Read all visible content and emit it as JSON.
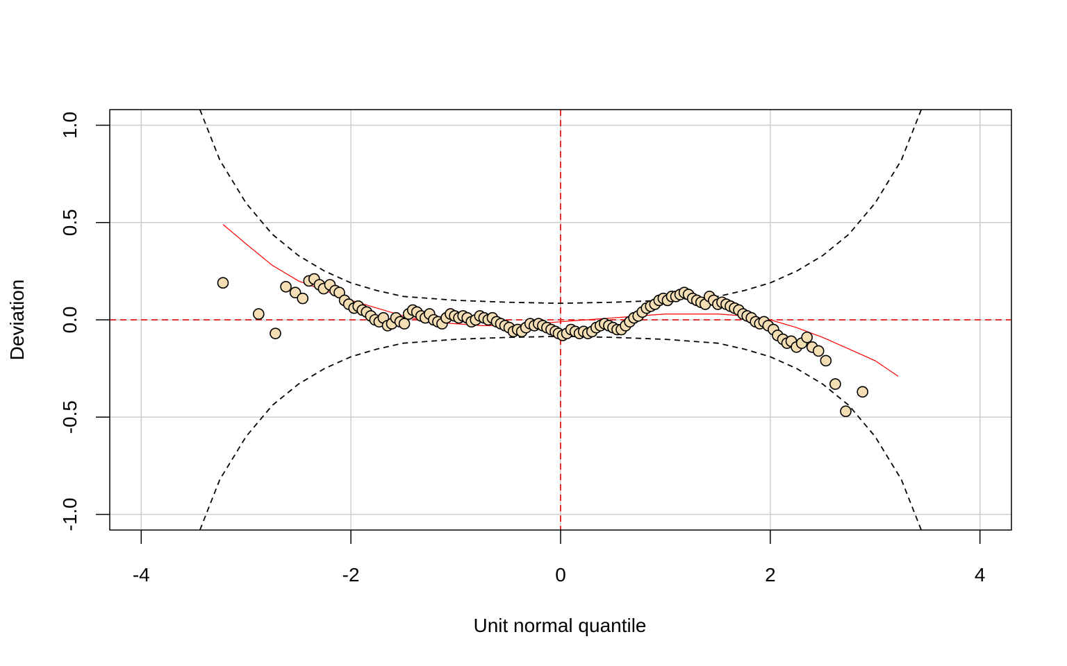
{
  "chart_data": {
    "type": "scatter",
    "title": "",
    "xlabel": "Unit normal quantile",
    "ylabel": "Deviation",
    "xlim": [
      -4.3,
      4.3
    ],
    "ylim": [
      -1.08,
      1.08
    ],
    "x_ticks": [
      -4,
      -2,
      0,
      2,
      4
    ],
    "x_tick_labels": [
      "-4",
      "-2",
      "0",
      "2",
      "4"
    ],
    "y_ticks": [
      -1.0,
      -0.5,
      0.0,
      0.5,
      1.0
    ],
    "y_tick_labels": [
      "-1.0",
      "-0.5",
      "0.0",
      "0.5",
      "1.0"
    ],
    "grid": true,
    "reference_lines": {
      "x": 0,
      "y": 0,
      "color": "#e31a1c",
      "style": "dashed"
    },
    "point_fill": "#f5deb3",
    "point_stroke": "#000000",
    "fit_color": "#ff0000",
    "band_color": "#000000",
    "points": [
      [
        -3.22,
        0.19
      ],
      [
        -2.88,
        0.03
      ],
      [
        -2.72,
        -0.07
      ],
      [
        -2.62,
        0.17
      ],
      [
        -2.53,
        0.14
      ],
      [
        -2.46,
        0.11
      ],
      [
        -2.4,
        0.2
      ],
      [
        -2.35,
        0.21
      ],
      [
        -2.3,
        0.18
      ],
      [
        -2.26,
        0.16
      ],
      [
        -2.2,
        0.18
      ],
      [
        -2.15,
        0.15
      ],
      [
        -2.11,
        0.14
      ],
      [
        -2.06,
        0.1
      ],
      [
        -2.02,
        0.08
      ],
      [
        -1.97,
        0.06
      ],
      [
        -1.93,
        0.07
      ],
      [
        -1.89,
        0.05
      ],
      [
        -1.85,
        0.04
      ],
      [
        -1.81,
        0.02
      ],
      [
        -1.77,
        0.0
      ],
      [
        -1.73,
        -0.01
      ],
      [
        -1.69,
        0.01
      ],
      [
        -1.65,
        -0.03
      ],
      [
        -1.61,
        -0.02
      ],
      [
        -1.57,
        0.01
      ],
      [
        -1.53,
        -0.01
      ],
      [
        -1.49,
        -0.02
      ],
      [
        -1.45,
        0.03
      ],
      [
        -1.41,
        0.05
      ],
      [
        -1.37,
        0.04
      ],
      [
        -1.33,
        0.02
      ],
      [
        -1.29,
        0.01
      ],
      [
        -1.25,
        0.03
      ],
      [
        -1.21,
        0.0
      ],
      [
        -1.17,
        -0.01
      ],
      [
        -1.13,
        -0.02
      ],
      [
        -1.09,
        0.01
      ],
      [
        -1.05,
        0.03
      ],
      [
        -1.01,
        0.02
      ],
      [
        -0.97,
        0.01
      ],
      [
        -0.93,
        0.02
      ],
      [
        -0.89,
        0.01
      ],
      [
        -0.85,
        -0.01
      ],
      [
        -0.81,
        0.0
      ],
      [
        -0.77,
        0.02
      ],
      [
        -0.73,
        0.01
      ],
      [
        -0.69,
        0.0
      ],
      [
        -0.65,
        0.01
      ],
      [
        -0.61,
        -0.01
      ],
      [
        -0.57,
        -0.02
      ],
      [
        -0.53,
        -0.03
      ],
      [
        -0.49,
        -0.04
      ],
      [
        -0.45,
        -0.06
      ],
      [
        -0.41,
        -0.05
      ],
      [
        -0.37,
        -0.06
      ],
      [
        -0.33,
        -0.04
      ],
      [
        -0.29,
        -0.02
      ],
      [
        -0.25,
        -0.03
      ],
      [
        -0.21,
        -0.02
      ],
      [
        -0.17,
        -0.03
      ],
      [
        -0.13,
        -0.04
      ],
      [
        -0.09,
        -0.05
      ],
      [
        -0.05,
        -0.06
      ],
      [
        -0.02,
        -0.07
      ],
      [
        0.02,
        -0.08
      ],
      [
        0.06,
        -0.07
      ],
      [
        0.1,
        -0.05
      ],
      [
        0.14,
        -0.06
      ],
      [
        0.18,
        -0.07
      ],
      [
        0.22,
        -0.06
      ],
      [
        0.26,
        -0.07
      ],
      [
        0.3,
        -0.06
      ],
      [
        0.34,
        -0.04
      ],
      [
        0.38,
        -0.03
      ],
      [
        0.42,
        -0.02
      ],
      [
        0.46,
        -0.03
      ],
      [
        0.5,
        -0.04
      ],
      [
        0.54,
        -0.05
      ],
      [
        0.58,
        -0.05
      ],
      [
        0.62,
        -0.03
      ],
      [
        0.66,
        -0.01
      ],
      [
        0.7,
        0.01
      ],
      [
        0.74,
        0.02
      ],
      [
        0.78,
        0.04
      ],
      [
        0.82,
        0.06
      ],
      [
        0.86,
        0.07
      ],
      [
        0.9,
        0.08
      ],
      [
        0.94,
        0.1
      ],
      [
        0.98,
        0.11
      ],
      [
        1.02,
        0.1
      ],
      [
        1.06,
        0.12
      ],
      [
        1.1,
        0.12
      ],
      [
        1.14,
        0.13
      ],
      [
        1.18,
        0.14
      ],
      [
        1.22,
        0.13
      ],
      [
        1.26,
        0.11
      ],
      [
        1.3,
        0.1
      ],
      [
        1.34,
        0.09
      ],
      [
        1.38,
        0.08
      ],
      [
        1.42,
        0.12
      ],
      [
        1.46,
        0.1
      ],
      [
        1.5,
        0.08
      ],
      [
        1.54,
        0.09
      ],
      [
        1.58,
        0.08
      ],
      [
        1.62,
        0.07
      ],
      [
        1.66,
        0.06
      ],
      [
        1.7,
        0.05
      ],
      [
        1.74,
        0.03
      ],
      [
        1.78,
        0.02
      ],
      [
        1.82,
        0.01
      ],
      [
        1.86,
        -0.01
      ],
      [
        1.9,
        -0.02
      ],
      [
        1.94,
        -0.01
      ],
      [
        1.98,
        -0.03
      ],
      [
        2.03,
        -0.05
      ],
      [
        2.07,
        -0.08
      ],
      [
        2.12,
        -0.1
      ],
      [
        2.16,
        -0.12
      ],
      [
        2.2,
        -0.11
      ],
      [
        2.25,
        -0.14
      ],
      [
        2.3,
        -0.12
      ],
      [
        2.35,
        -0.09
      ],
      [
        2.4,
        -0.14
      ],
      [
        2.46,
        -0.16
      ],
      [
        2.53,
        -0.21
      ],
      [
        2.62,
        -0.33
      ],
      [
        2.72,
        -0.47
      ],
      [
        2.88,
        -0.37
      ]
    ],
    "fit_curve": [
      [
        -3.22,
        0.49
      ],
      [
        -3.0,
        0.39
      ],
      [
        -2.75,
        0.28
      ],
      [
        -2.5,
        0.2
      ],
      [
        -2.25,
        0.15
      ],
      [
        -2.0,
        0.1
      ],
      [
        -1.75,
        0.06
      ],
      [
        -1.5,
        0.02
      ],
      [
        -1.25,
        -0.01
      ],
      [
        -1.0,
        -0.02
      ],
      [
        -0.75,
        -0.03
      ],
      [
        -0.5,
        -0.03
      ],
      [
        -0.25,
        -0.02
      ],
      [
        0.0,
        -0.01
      ],
      [
        0.25,
        0.0
      ],
      [
        0.5,
        0.01
      ],
      [
        0.75,
        0.02
      ],
      [
        1.0,
        0.03
      ],
      [
        1.25,
        0.03
      ],
      [
        1.5,
        0.03
      ],
      [
        1.75,
        0.02
      ],
      [
        2.0,
        0.0
      ],
      [
        2.25,
        -0.04
      ],
      [
        2.5,
        -0.09
      ],
      [
        2.75,
        -0.15
      ],
      [
        3.0,
        -0.21
      ],
      [
        3.22,
        -0.29
      ]
    ],
    "band_upper": [
      [
        -3.44,
        1.08
      ],
      [
        -3.25,
        0.82
      ],
      [
        -3.0,
        0.6
      ],
      [
        -2.75,
        0.44
      ],
      [
        -2.5,
        0.33
      ],
      [
        -2.25,
        0.25
      ],
      [
        -2.0,
        0.19
      ],
      [
        -1.75,
        0.15
      ],
      [
        -1.5,
        0.12
      ],
      [
        -1.0,
        0.1
      ],
      [
        -0.5,
        0.09
      ],
      [
        0.0,
        0.085
      ],
      [
        0.5,
        0.09
      ],
      [
        1.0,
        0.1
      ],
      [
        1.5,
        0.12
      ],
      [
        1.75,
        0.15
      ],
      [
        2.0,
        0.19
      ],
      [
        2.25,
        0.25
      ],
      [
        2.5,
        0.33
      ],
      [
        2.75,
        0.44
      ],
      [
        3.0,
        0.6
      ],
      [
        3.25,
        0.82
      ],
      [
        3.44,
        1.08
      ]
    ],
    "band_lower": [
      [
        -3.44,
        -1.08
      ],
      [
        -3.25,
        -0.82
      ],
      [
        -3.0,
        -0.6
      ],
      [
        -2.75,
        -0.44
      ],
      [
        -2.5,
        -0.33
      ],
      [
        -2.25,
        -0.25
      ],
      [
        -2.0,
        -0.19
      ],
      [
        -1.75,
        -0.15
      ],
      [
        -1.5,
        -0.12
      ],
      [
        -1.0,
        -0.1
      ],
      [
        -0.5,
        -0.09
      ],
      [
        0.0,
        -0.085
      ],
      [
        0.5,
        -0.09
      ],
      [
        1.0,
        -0.1
      ],
      [
        1.5,
        -0.12
      ],
      [
        1.75,
        -0.15
      ],
      [
        2.0,
        -0.19
      ],
      [
        2.25,
        -0.25
      ],
      [
        2.5,
        -0.33
      ],
      [
        2.75,
        -0.44
      ],
      [
        3.0,
        -0.6
      ],
      [
        3.25,
        -0.82
      ],
      [
        3.44,
        -1.08
      ]
    ]
  }
}
